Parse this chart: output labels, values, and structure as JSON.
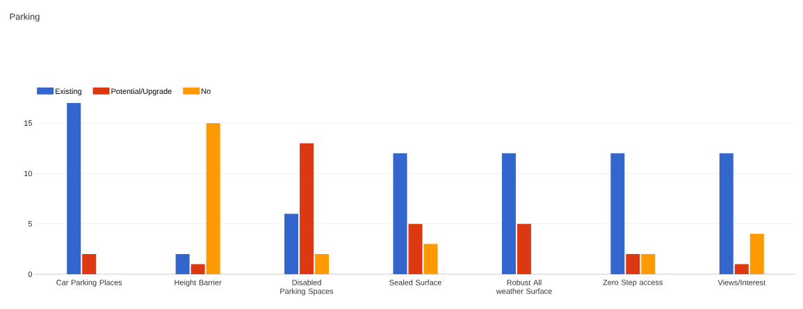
{
  "chart_data": {
    "type": "bar",
    "title": "Parking",
    "categories": [
      "Car Parking Places",
      "Height Barrier",
      "Disabled Parking Spaces",
      "Sealed Surface",
      "Robust All weather Surface",
      "Zero Step access",
      "Views/Interest"
    ],
    "series": [
      {
        "name": "Existing",
        "color": "#3366cc",
        "values": [
          17,
          2,
          6,
          12,
          12,
          12,
          12
        ]
      },
      {
        "name": "Potential/Upgrade",
        "color": "#dc3912",
        "values": [
          2,
          1,
          13,
          5,
          5,
          2,
          1
        ]
      },
      {
        "name": "No",
        "color": "#ff9900",
        "values": [
          0,
          15,
          2,
          3,
          0,
          2,
          4
        ]
      }
    ],
    "ylim": [
      0,
      17
    ],
    "yticks": [
      0,
      5,
      10,
      15
    ],
    "grid": "y",
    "legend": "top left"
  }
}
